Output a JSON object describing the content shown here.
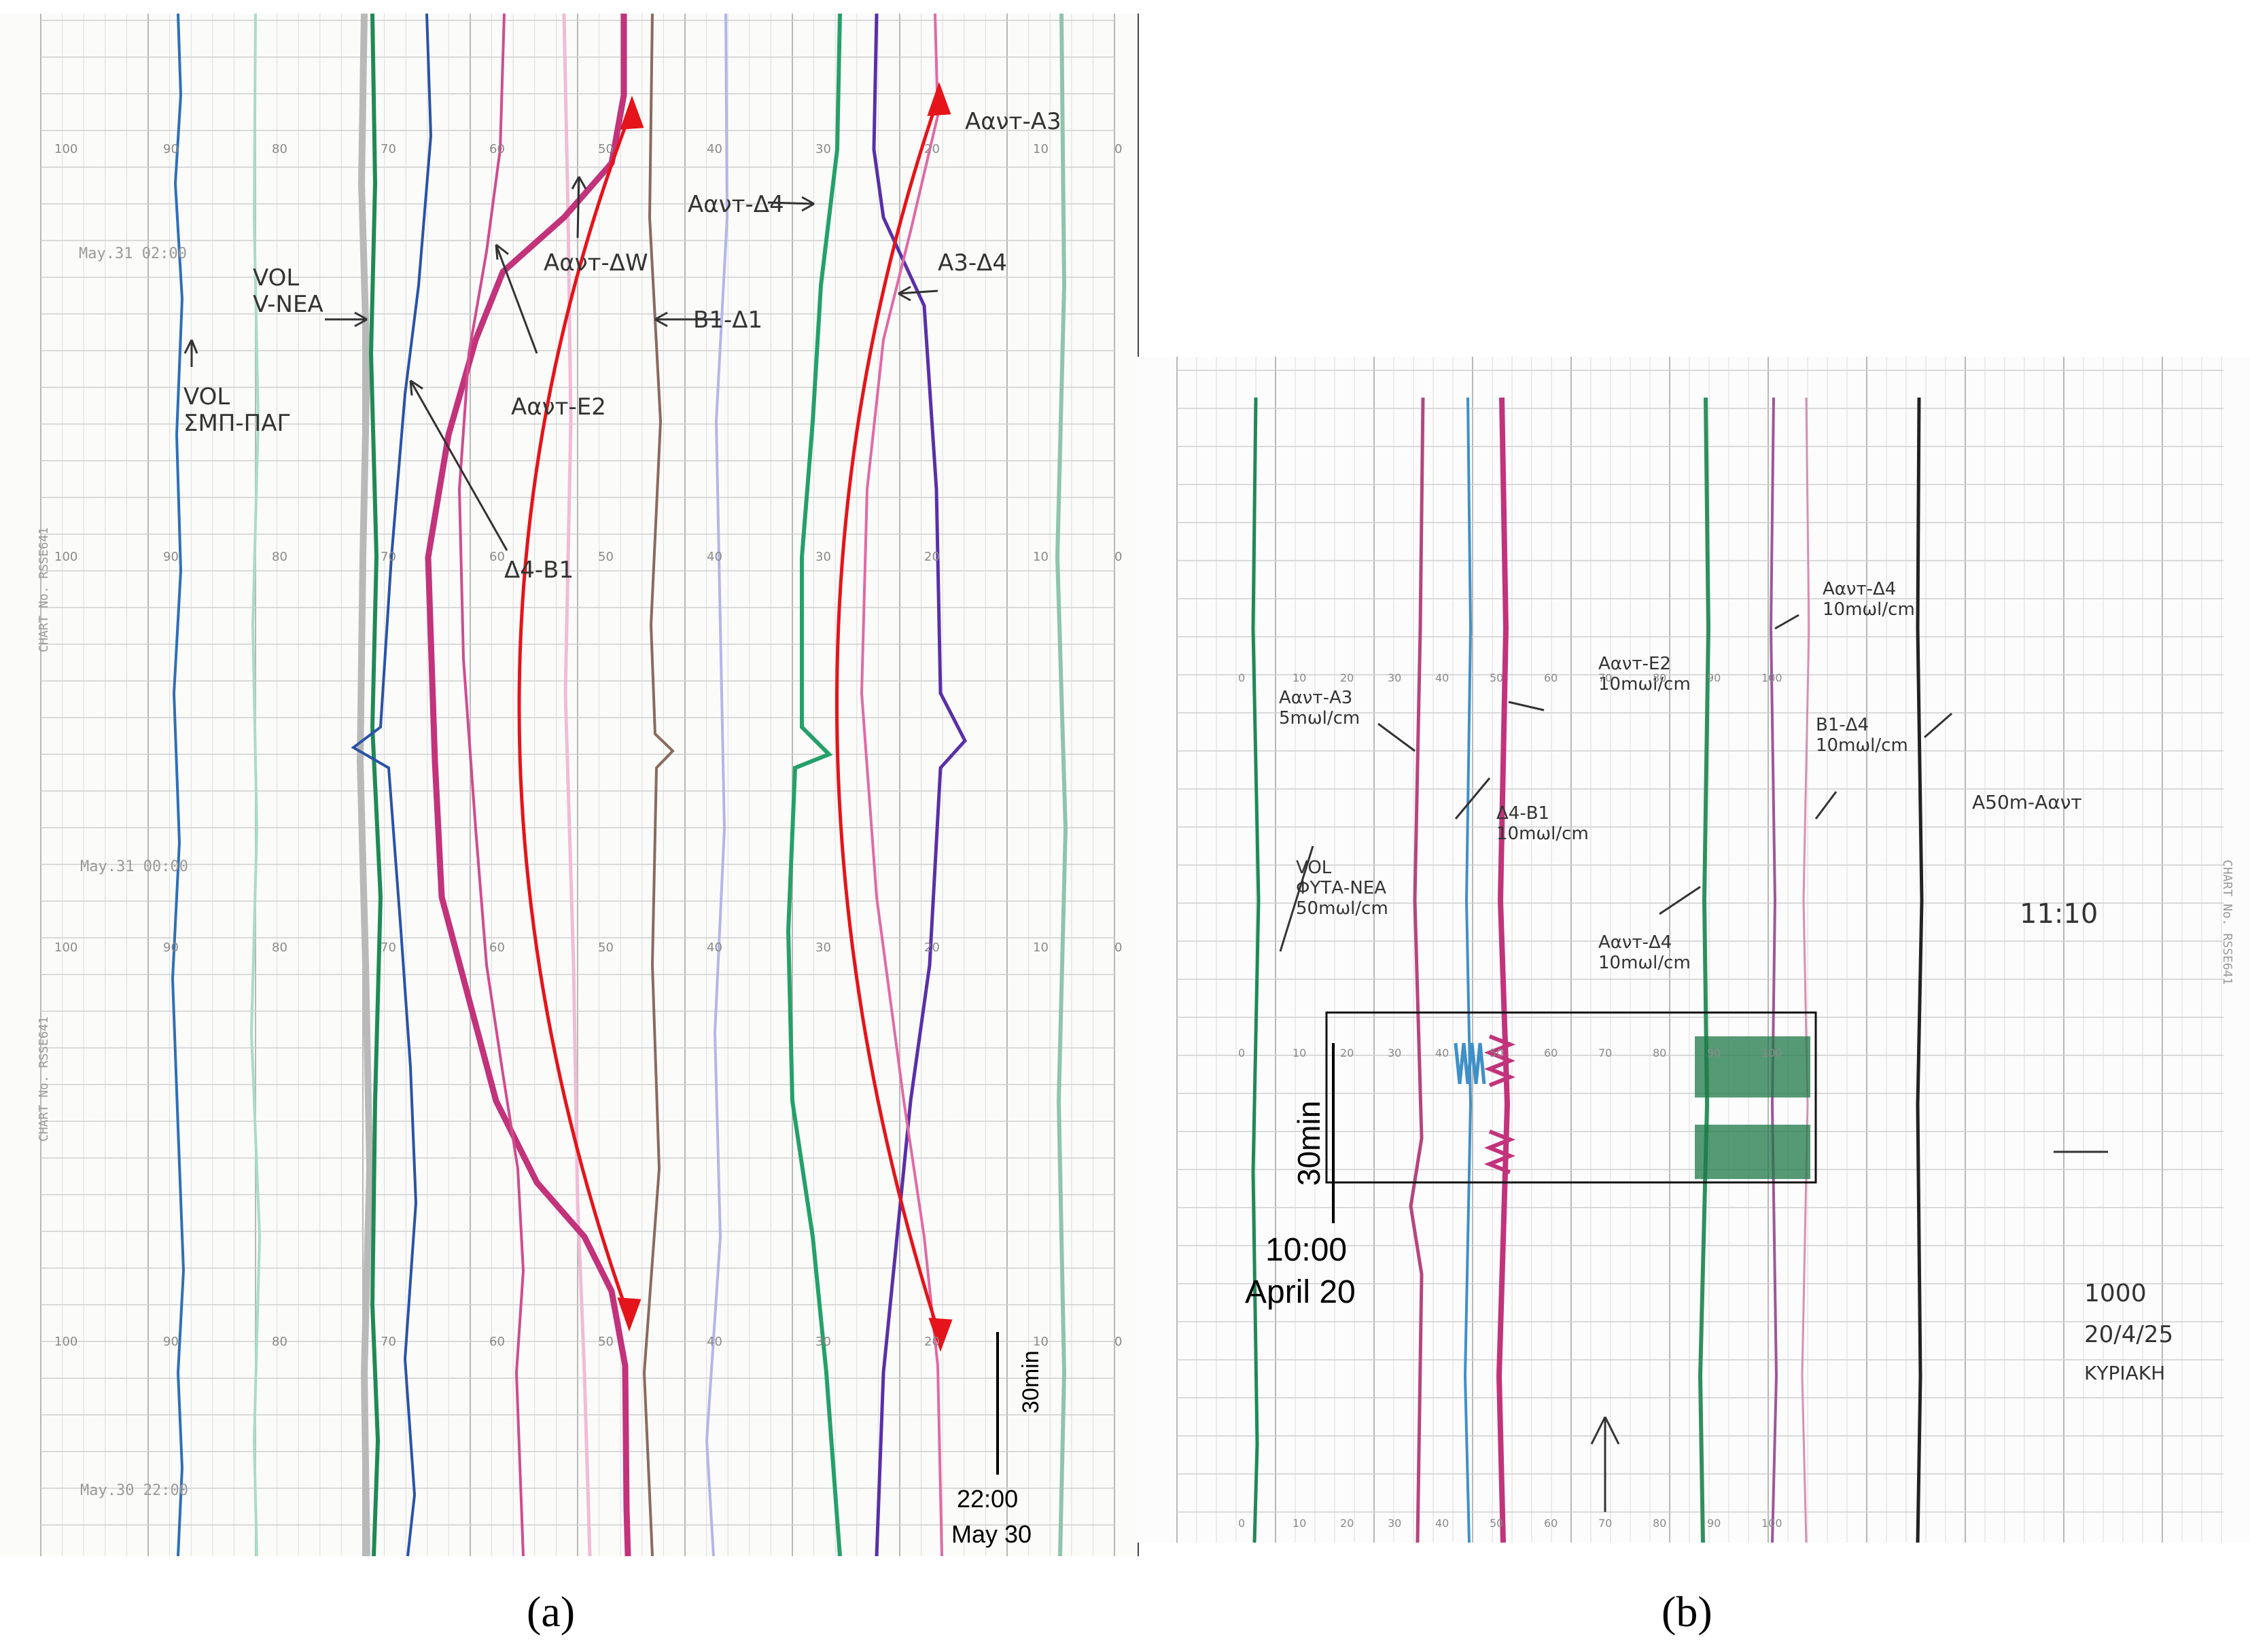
{
  "panel_a": {
    "caption": "(a)",
    "timestamps": [
      "May.31 02:00",
      "May.31 00:00",
      "May.30 22:00"
    ],
    "chart_scale_numbers": [
      "100",
      "90",
      "80",
      "70",
      "60",
      "50",
      "40",
      "30",
      "20",
      "10",
      "0"
    ],
    "annotations": [
      "VOL\nΣΜΠ-ΠΑΓ",
      "VOL\nV-ΝΕΑ",
      "Αανт-ΔW",
      "Αανт-Ε2",
      "Δ4-Β1",
      "Αανт-Δ4",
      "Β1-Δ1",
      "Αανт-Α3",
      "Α3-Δ4"
    ],
    "scale_bar": {
      "duration": "30min",
      "time": "22:00",
      "date": "May 30"
    },
    "side_print": "CHART No. RSSE641"
  },
  "panel_b": {
    "caption": "(b)",
    "annotations": [
      "Αανт-Α3\n5mωl/cm",
      "Αανт-Ε2\n10mωl/cm",
      "Δ4-Β1\n10mωl/cm",
      "Αανт-Δ4\n10mωl/cm",
      "Β1-Δ4\n10mωl/cm",
      "Αανт-Δ4\n10mωl/cm",
      "Α50m-Αανт",
      "VOL\nΦΥΤΑ-ΝΕΑ\n50mωl/cm"
    ],
    "handwritten": {
      "time": "11:10",
      "note_1": "1000",
      "note_2": "20/4/25",
      "note_3": "ΚΥΡΙΑΚΗ"
    },
    "scale_bar": {
      "duration": "30min",
      "time": "10:00",
      "date": "April 20"
    },
    "side_print": "CHART No. RSSE641"
  },
  "colors": {
    "blue": "#2f6fb6",
    "dark_blue": "#1f3f8f",
    "teal": "#7bc7aa",
    "green": "#1e8a55",
    "magenta": "#c2337b",
    "pink": "#e7a3c8",
    "brown": "#8a6a5e",
    "purple": "#5a2fa8",
    "gray": "#9a9a9a",
    "red": "#e5141a",
    "black": "#222222"
  }
}
